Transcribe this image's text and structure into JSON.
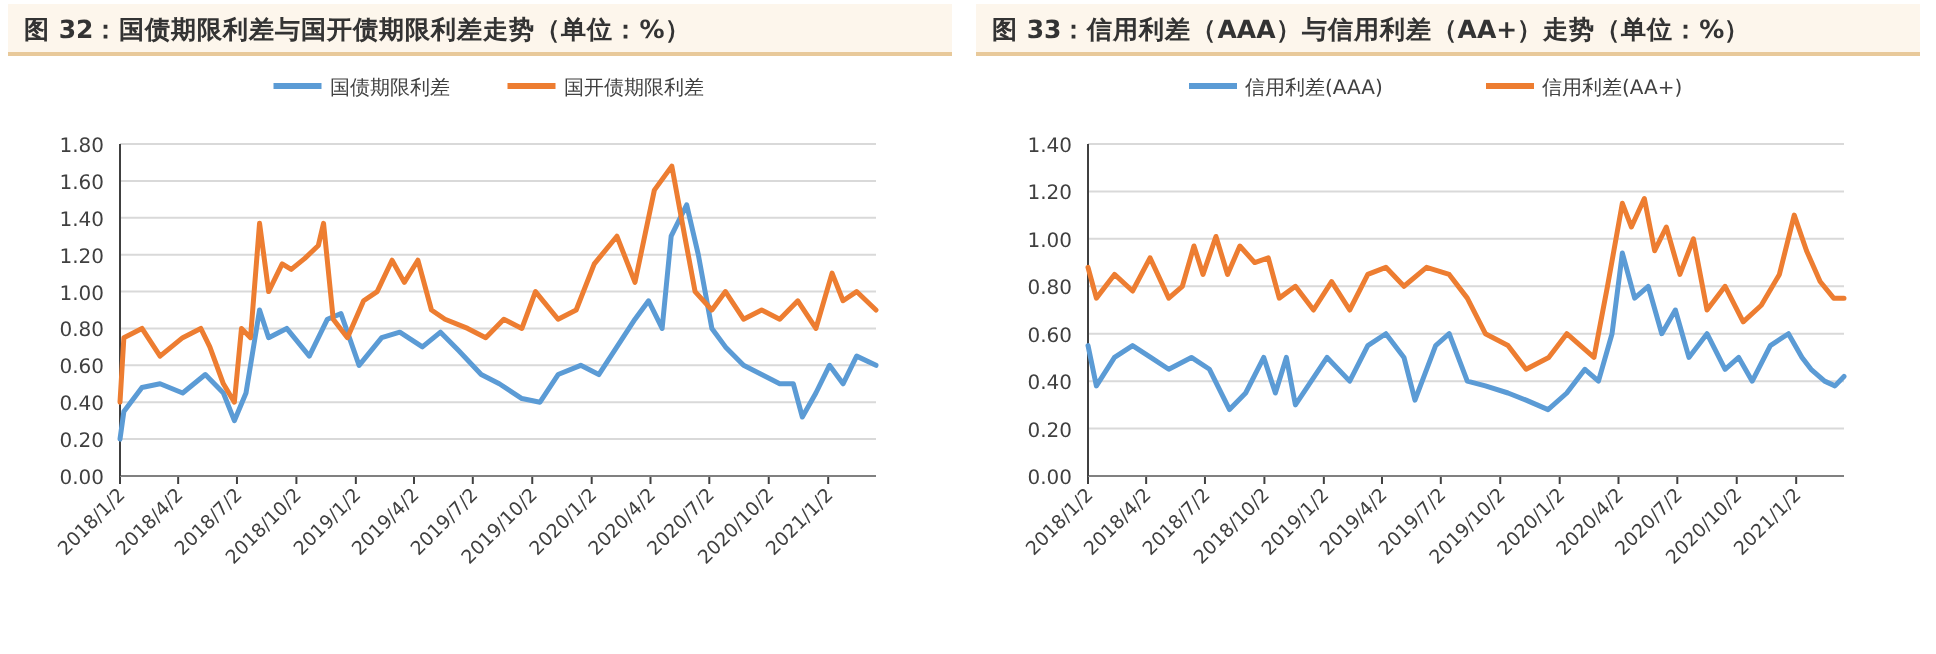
{
  "chart_data": [
    {
      "type": "line",
      "title": "图 32：国债期限利差与国开债期限利差走势（单位：%）",
      "legend": "top",
      "grid": "y",
      "line_style": "solid",
      "marker": "none",
      "xlim": [
        "2018-01-02",
        "2021-03-17"
      ],
      "xticks": [
        {
          "value": "2018-01-02",
          "label": "2018/1/2"
        },
        {
          "value": "2018-04-02",
          "label": "2018/4/2"
        },
        {
          "value": "2018-07-02",
          "label": "2018/7/2"
        },
        {
          "value": "2018-10-02",
          "label": "2018/10/2"
        },
        {
          "value": "2019-01-02",
          "label": "2019/1/2"
        },
        {
          "value": "2019-04-02",
          "label": "2019/4/2"
        },
        {
          "value": "2019-07-02",
          "label": "2019/7/2"
        },
        {
          "value": "2019-10-02",
          "label": "2019/10/2"
        },
        {
          "value": "2020-01-02",
          "label": "2020/1/2"
        },
        {
          "value": "2020-04-02",
          "label": "2020/4/2"
        },
        {
          "value": "2020-07-02",
          "label": "2020/7/2"
        },
        {
          "value": "2020-10-02",
          "label": "2020/10/2"
        },
        {
          "value": "2021-01-02",
          "label": "2021/1/2"
        }
      ],
      "ylim": [
        0,
        1.8
      ],
      "yticks": [
        {
          "value": 0,
          "label": "0.00"
        },
        {
          "value": 0.2,
          "label": "0.20"
        },
        {
          "value": 0.4,
          "label": "0.40"
        },
        {
          "value": 0.6,
          "label": "0.60"
        },
        {
          "value": 0.8,
          "label": "0.80"
        },
        {
          "value": 1.0,
          "label": "1.00"
        },
        {
          "value": 1.2,
          "label": "1.20"
        },
        {
          "value": 1.4,
          "label": "1.40"
        },
        {
          "value": 1.6,
          "label": "1.60"
        },
        {
          "value": 1.8,
          "label": "1.80"
        }
      ],
      "series": [
        {
          "name": "国债期限利差",
          "color": "#5b9bd5",
          "x": [
            "2018-01-02",
            "2018-01-08",
            "2018-02-05",
            "2018-03-05",
            "2018-04-09",
            "2018-05-14",
            "2018-06-11",
            "2018-06-28",
            "2018-07-16",
            "2018-08-06",
            "2018-08-20",
            "2018-09-17",
            "2018-10-22",
            "2018-11-19",
            "2018-12-10",
            "2019-01-07",
            "2019-02-11",
            "2019-03-11",
            "2019-04-15",
            "2019-05-13",
            "2019-06-10",
            "2019-07-15",
            "2019-08-12",
            "2019-09-16",
            "2019-10-14",
            "2019-11-11",
            "2019-12-16",
            "2020-01-13",
            "2020-02-10",
            "2020-03-09",
            "2020-03-30",
            "2020-04-20",
            "2020-05-04",
            "2020-05-18",
            "2020-05-28",
            "2020-06-15",
            "2020-07-06",
            "2020-07-27",
            "2020-08-24",
            "2020-09-21",
            "2020-10-19",
            "2020-11-09",
            "2020-11-23",
            "2020-12-14",
            "2021-01-04",
            "2021-01-25",
            "2021-02-15",
            "2021-03-17"
          ],
          "values": [
            0.2,
            0.35,
            0.48,
            0.5,
            0.45,
            0.55,
            0.45,
            0.3,
            0.45,
            0.9,
            0.75,
            0.8,
            0.65,
            0.85,
            0.88,
            0.6,
            0.75,
            0.78,
            0.7,
            0.78,
            0.68,
            0.55,
            0.5,
            0.42,
            0.4,
            0.55,
            0.6,
            0.55,
            0.7,
            0.85,
            0.95,
            0.8,
            1.3,
            1.4,
            1.47,
            1.2,
            0.8,
            0.7,
            0.6,
            0.55,
            0.5,
            0.5,
            0.32,
            0.45,
            0.6,
            0.5,
            0.65,
            0.6
          ]
        },
        {
          "name": "国开债期限利差",
          "color": "#ed7d31",
          "x": [
            "2018-01-02",
            "2018-01-08",
            "2018-02-05",
            "2018-03-05",
            "2018-04-09",
            "2018-05-07",
            "2018-05-21",
            "2018-06-11",
            "2018-06-28",
            "2018-07-09",
            "2018-07-23",
            "2018-08-06",
            "2018-08-20",
            "2018-09-10",
            "2018-09-24",
            "2018-10-15",
            "2018-11-05",
            "2018-11-13",
            "2018-11-28",
            "2018-12-20",
            "2019-01-14",
            "2019-02-04",
            "2019-02-27",
            "2019-03-18",
            "2019-04-08",
            "2019-04-29",
            "2019-05-20",
            "2019-06-24",
            "2019-07-22",
            "2019-08-19",
            "2019-09-16",
            "2019-10-07",
            "2019-11-11",
            "2019-12-09",
            "2020-01-06",
            "2020-02-10",
            "2020-03-09",
            "2020-04-08",
            "2020-05-05",
            "2020-05-25",
            "2020-06-10",
            "2020-07-06",
            "2020-07-27",
            "2020-08-24",
            "2020-09-21",
            "2020-10-19",
            "2020-11-16",
            "2020-12-14",
            "2021-01-08",
            "2021-01-25",
            "2021-02-15",
            "2021-03-17"
          ],
          "values": [
            0.4,
            0.75,
            0.8,
            0.65,
            0.75,
            0.8,
            0.7,
            0.5,
            0.4,
            0.8,
            0.75,
            1.37,
            1.0,
            1.15,
            1.12,
            1.18,
            1.25,
            1.37,
            0.85,
            0.75,
            0.95,
            1.0,
            1.17,
            1.05,
            1.17,
            0.9,
            0.85,
            0.8,
            0.75,
            0.85,
            0.8,
            1.0,
            0.85,
            0.9,
            1.15,
            1.3,
            1.05,
            1.55,
            1.68,
            1.3,
            1.0,
            0.9,
            1.0,
            0.85,
            0.9,
            0.85,
            0.95,
            0.8,
            1.1,
            0.95,
            1.0,
            0.9
          ]
        }
      ]
    },
    {
      "type": "line",
      "title": "图 33：信用利差（AAA）与信用利差（AA+）走势（单位：%）",
      "legend": "top",
      "grid": "y",
      "line_style": "solid",
      "marker": "none",
      "xlim": [
        "2018-01-02",
        "2021-03-17"
      ],
      "xticks": [
        {
          "value": "2018-01-02",
          "label": "2018/1/2"
        },
        {
          "value": "2018-04-02",
          "label": "2018/4/2"
        },
        {
          "value": "2018-07-02",
          "label": "2018/7/2"
        },
        {
          "value": "2018-10-02",
          "label": "2018/10/2"
        },
        {
          "value": "2019-01-02",
          "label": "2019/1/2"
        },
        {
          "value": "2019-04-02",
          "label": "2019/4/2"
        },
        {
          "value": "2019-07-02",
          "label": "2019/7/2"
        },
        {
          "value": "2019-10-02",
          "label": "2019/10/2"
        },
        {
          "value": "2020-01-02",
          "label": "2020/1/2"
        },
        {
          "value": "2020-04-02",
          "label": "2020/4/2"
        },
        {
          "value": "2020-07-02",
          "label": "2020/7/2"
        },
        {
          "value": "2020-10-02",
          "label": "2020/10/2"
        },
        {
          "value": "2021-01-02",
          "label": "2021/1/2"
        }
      ],
      "ylim": [
        0,
        1.4
      ],
      "yticks": [
        {
          "value": 0,
          "label": "0.00"
        },
        {
          "value": 0.2,
          "label": "0.20"
        },
        {
          "value": 0.4,
          "label": "0.40"
        },
        {
          "value": 0.6,
          "label": "0.60"
        },
        {
          "value": 0.8,
          "label": "0.80"
        },
        {
          "value": 1.0,
          "label": "1.00"
        },
        {
          "value": 1.2,
          "label": "1.20"
        },
        {
          "value": 1.4,
          "label": "1.40"
        }
      ],
      "series": [
        {
          "name": "信用利差(AAA)",
          "color": "#5b9bd5",
          "x": [
            "2018-01-02",
            "2018-01-15",
            "2018-02-12",
            "2018-03-12",
            "2018-04-09",
            "2018-05-07",
            "2018-06-11",
            "2018-07-09",
            "2018-08-09",
            "2018-09-03",
            "2018-10-01",
            "2018-10-19",
            "2018-11-05",
            "2018-11-19",
            "2019-01-07",
            "2019-02-11",
            "2019-03-11",
            "2019-04-08",
            "2019-05-06",
            "2019-05-23",
            "2019-06-24",
            "2019-07-15",
            "2019-08-12",
            "2019-09-09",
            "2019-10-14",
            "2019-11-11",
            "2019-12-15",
            "2020-01-13",
            "2020-02-10",
            "2020-03-02",
            "2020-03-23",
            "2020-04-08",
            "2020-04-27",
            "2020-05-18",
            "2020-06-08",
            "2020-06-29",
            "2020-07-20",
            "2020-08-17",
            "2020-09-14",
            "2020-10-05",
            "2020-10-26",
            "2020-11-23",
            "2020-12-21",
            "2021-01-11",
            "2021-01-25",
            "2021-02-15",
            "2021-03-03",
            "2021-03-17"
          ],
          "values": [
            0.55,
            0.38,
            0.5,
            0.55,
            0.5,
            0.45,
            0.5,
            0.45,
            0.28,
            0.35,
            0.5,
            0.35,
            0.5,
            0.3,
            0.5,
            0.4,
            0.55,
            0.6,
            0.5,
            0.32,
            0.55,
            0.6,
            0.4,
            0.38,
            0.35,
            0.32,
            0.28,
            0.35,
            0.45,
            0.4,
            0.6,
            0.94,
            0.75,
            0.8,
            0.6,
            0.7,
            0.5,
            0.6,
            0.45,
            0.5,
            0.4,
            0.55,
            0.6,
            0.5,
            0.45,
            0.4,
            0.38,
            0.42
          ]
        },
        {
          "name": "信用利差(AA+)",
          "color": "#ed7d31",
          "x": [
            "2018-01-02",
            "2018-01-15",
            "2018-02-12",
            "2018-03-12",
            "2018-04-08",
            "2018-05-07",
            "2018-05-28",
            "2018-06-15",
            "2018-06-29",
            "2018-07-19",
            "2018-08-06",
            "2018-08-25",
            "2018-09-17",
            "2018-10-08",
            "2018-10-25",
            "2018-11-19",
            "2018-12-17",
            "2019-01-14",
            "2019-02-11",
            "2019-03-11",
            "2019-04-08",
            "2019-05-06",
            "2019-06-10",
            "2019-07-15",
            "2019-08-12",
            "2019-09-09",
            "2019-10-14",
            "2019-11-11",
            "2019-12-16",
            "2020-01-13",
            "2020-02-24",
            "2020-03-16",
            "2020-04-08",
            "2020-04-22",
            "2020-05-12",
            "2020-05-28",
            "2020-06-15",
            "2020-07-06",
            "2020-07-27",
            "2020-08-17",
            "2020-09-14",
            "2020-10-12",
            "2020-11-09",
            "2020-12-07",
            "2020-12-30",
            "2021-01-18",
            "2021-02-08",
            "2021-03-01",
            "2021-03-17"
          ],
          "values": [
            0.88,
            0.75,
            0.85,
            0.78,
            0.92,
            0.75,
            0.8,
            0.97,
            0.85,
            1.01,
            0.85,
            0.97,
            0.9,
            0.92,
            0.75,
            0.8,
            0.7,
            0.82,
            0.7,
            0.85,
            0.88,
            0.8,
            0.88,
            0.85,
            0.75,
            0.6,
            0.55,
            0.45,
            0.5,
            0.6,
            0.5,
            0.8,
            1.15,
            1.05,
            1.17,
            0.95,
            1.05,
            0.85,
            1.0,
            0.7,
            0.8,
            0.65,
            0.72,
            0.85,
            1.1,
            0.95,
            0.82,
            0.75,
            0.75
          ]
        }
      ]
    }
  ]
}
